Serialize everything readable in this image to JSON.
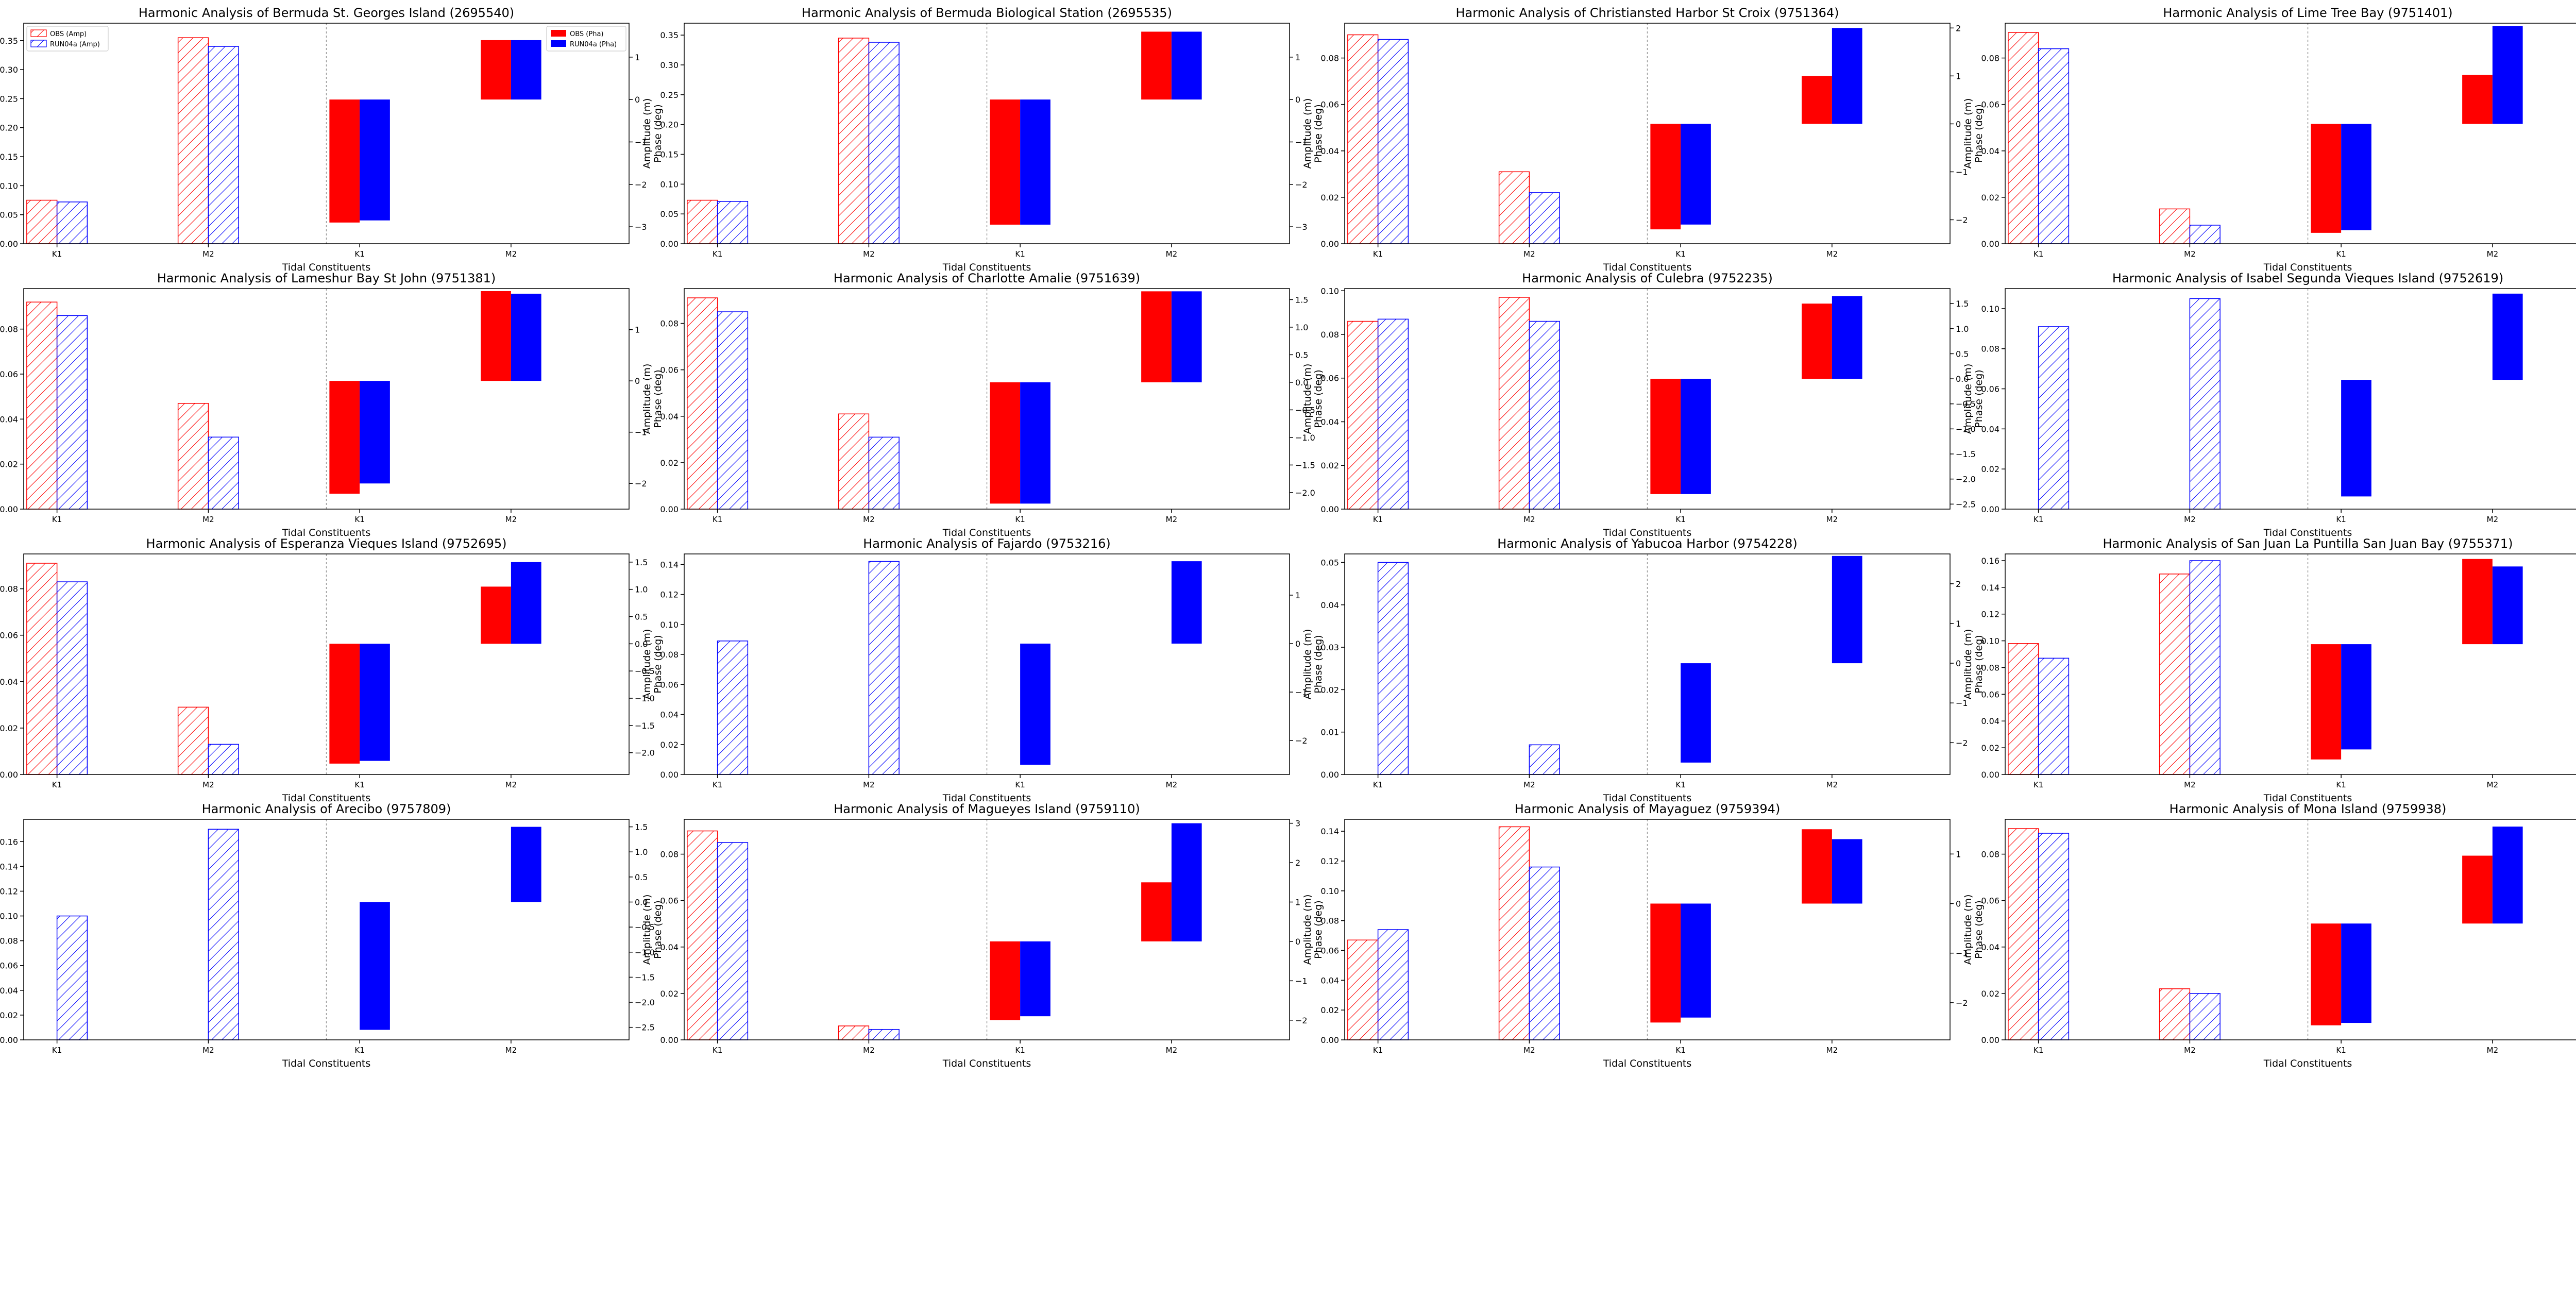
{
  "chart_data": [
    {
      "type": "bar",
      "title": "Harmonic Analysis of Bermuda St. Georges Island (2695540)",
      "xlabel": "Tidal Constituents",
      "ylabel": "Amplitude (m)",
      "y2label": "Phase (deg)",
      "categories": [
        "K1",
        "M2"
      ],
      "ylim": [
        0,
        0.38
      ],
      "yticks": [
        0,
        0.05,
        0.1,
        0.15,
        0.2,
        0.25,
        0.3,
        0.35
      ],
      "y2lim": [
        -3.4,
        1.8
      ],
      "y2ticks": [
        -3,
        -2,
        -1,
        0,
        1
      ],
      "amp_series": [
        {
          "name": "OBS (Amp)",
          "values": [
            0.075,
            0.355
          ]
        },
        {
          "name": "RUN04a (Amp)",
          "values": [
            0.072,
            0.34
          ]
        }
      ],
      "pha_series": [
        {
          "name": "OBS (Pha)",
          "values": [
            -2.9,
            1.4
          ]
        },
        {
          "name": "RUN04a (Pha)",
          "values": [
            -2.85,
            1.4
          ]
        }
      ],
      "legend": true
    },
    {
      "type": "bar",
      "title": "Harmonic Analysis of Bermuda Biological Station (2695535)",
      "xlabel": "Tidal Constituents",
      "ylabel": "Amplitude (m)",
      "y2label": "Phase (deg)",
      "categories": [
        "K1",
        "M2"
      ],
      "ylim": [
        0,
        0.37
      ],
      "yticks": [
        0,
        0.05,
        0.1,
        0.15,
        0.2,
        0.25,
        0.3,
        0.35
      ],
      "y2lim": [
        -3.4,
        1.8
      ],
      "y2ticks": [
        -3,
        -2,
        -1,
        0,
        1
      ],
      "amp_series": [
        {
          "name": "OBS (Amp)",
          "values": [
            0.073,
            0.345
          ]
        },
        {
          "name": "RUN04a (Amp)",
          "values": [
            0.071,
            0.338
          ]
        }
      ],
      "pha_series": [
        {
          "name": "OBS (Pha)",
          "values": [
            -2.95,
            1.6
          ]
        },
        {
          "name": "RUN04a (Pha)",
          "values": [
            -2.95,
            1.6
          ]
        }
      ]
    },
    {
      "type": "bar",
      "title": "Harmonic Analysis of Christiansted Harbor St Croix (9751364)",
      "xlabel": "Tidal Constituents",
      "ylabel": "Amplitude (m)",
      "y2label": "Phase (deg)",
      "categories": [
        "K1",
        "M2"
      ],
      "ylim": [
        0,
        0.095
      ],
      "yticks": [
        0,
        0.02,
        0.04,
        0.06,
        0.08
      ],
      "y2lim": [
        -2.5,
        2.1
      ],
      "y2ticks": [
        -2,
        -1,
        0,
        1,
        2
      ],
      "amp_series": [
        {
          "name": "OBS (Amp)",
          "values": [
            0.09,
            0.031
          ]
        },
        {
          "name": "RUN04a (Amp)",
          "values": [
            0.088,
            0.022
          ]
        }
      ],
      "pha_series": [
        {
          "name": "OBS (Pha)",
          "values": [
            -2.2,
            1.0
          ]
        },
        {
          "name": "RUN04a (Pha)",
          "values": [
            -2.1,
            2.0
          ]
        }
      ]
    },
    {
      "type": "bar",
      "title": "Harmonic Analysis of Lime Tree Bay (9751401)",
      "xlabel": "Tidal Constituents",
      "ylabel": "Amplitude (m)",
      "y2label": "Phase (deg)",
      "categories": [
        "K1",
        "M2"
      ],
      "ylim": [
        0,
        0.095
      ],
      "yticks": [
        0,
        0.02,
        0.04,
        0.06,
        0.08
      ],
      "y2lim": [
        -2.2,
        1.85
      ],
      "y2ticks": [
        -2.0,
        -1.5,
        -1.0,
        -0.5,
        0.0,
        0.5,
        1.0,
        1.5
      ],
      "amp_series": [
        {
          "name": "OBS (Amp)",
          "values": [
            0.091,
            0.015
          ]
        },
        {
          "name": "RUN04a (Amp)",
          "values": [
            0.084,
            0.008
          ]
        }
      ],
      "pha_series": [
        {
          "name": "OBS (Pha)",
          "values": [
            -2.0,
            0.9
          ]
        },
        {
          "name": "RUN04a (Pha)",
          "values": [
            -1.95,
            1.8
          ]
        }
      ]
    },
    {
      "type": "bar",
      "title": "Harmonic Analysis of Lameshur Bay St John (9751381)",
      "xlabel": "Tidal Constituents",
      "ylabel": "Amplitude (m)",
      "y2label": "Phase (deg)",
      "categories": [
        "K1",
        "M2"
      ],
      "ylim": [
        0,
        0.098
      ],
      "yticks": [
        0,
        0.02,
        0.04,
        0.06,
        0.08
      ],
      "y2lim": [
        -2.5,
        1.8
      ],
      "y2ticks": [
        -2,
        -1,
        0,
        1
      ],
      "amp_series": [
        {
          "name": "OBS (Amp)",
          "values": [
            0.092,
            0.047
          ]
        },
        {
          "name": "RUN04a (Amp)",
          "values": [
            0.086,
            0.032
          ]
        }
      ],
      "pha_series": [
        {
          "name": "OBS (Pha)",
          "values": [
            -2.2,
            1.75
          ]
        },
        {
          "name": "RUN04a (Pha)",
          "values": [
            -2.0,
            1.7
          ]
        }
      ]
    },
    {
      "type": "bar",
      "title": "Harmonic Analysis of Charlotte Amalie (9751639)",
      "xlabel": "Tidal Constituents",
      "ylabel": "Amplitude (m)",
      "y2label": "Phase (deg)",
      "categories": [
        "K1",
        "M2"
      ],
      "ylim": [
        0,
        0.095
      ],
      "yticks": [
        0,
        0.02,
        0.04,
        0.06,
        0.08
      ],
      "y2lim": [
        -2.3,
        1.7
      ],
      "y2ticks": [
        -2.0,
        -1.5,
        -1.0,
        -0.5,
        0.0,
        0.5,
        1.0,
        1.5
      ],
      "amp_series": [
        {
          "name": "OBS (Amp)",
          "values": [
            0.091,
            0.041
          ]
        },
        {
          "name": "RUN04a (Amp)",
          "values": [
            0.085,
            0.031
          ]
        }
      ],
      "pha_series": [
        {
          "name": "OBS (Pha)",
          "values": [
            -2.2,
            1.65
          ]
        },
        {
          "name": "RUN04a (Pha)",
          "values": [
            -2.2,
            1.65
          ]
        }
      ]
    },
    {
      "type": "bar",
      "title": "Harmonic Analysis of Culebra (9752235)",
      "xlabel": "Tidal Constituents",
      "ylabel": "Amplitude (m)",
      "y2label": "Phase (deg)",
      "categories": [
        "K1",
        "M2"
      ],
      "ylim": [
        0,
        0.101
      ],
      "yticks": [
        0,
        0.02,
        0.04,
        0.06,
        0.08,
        0.1
      ],
      "y2lim": [
        -2.6,
        1.8
      ],
      "y2ticks": [
        -2.5,
        -2.0,
        -1.5,
        -1.0,
        -0.5,
        0.0,
        0.5,
        1.0,
        1.5
      ],
      "amp_series": [
        {
          "name": "OBS (Amp)",
          "values": [
            0.086,
            0.097
          ]
        },
        {
          "name": "RUN04a (Amp)",
          "values": [
            0.087,
            0.086
          ]
        }
      ],
      "pha_series": [
        {
          "name": "OBS (Pha)",
          "values": [
            -2.3,
            1.5
          ]
        },
        {
          "name": "RUN04a (Pha)",
          "values": [
            -2.3,
            1.65
          ]
        }
      ]
    },
    {
      "type": "bar",
      "title": "Harmonic Analysis of Isabel Segunda Vieques Island (9752619)",
      "xlabel": "Tidal Constituents",
      "ylabel": "Amplitude (m)",
      "y2label": "Phase (deg)",
      "categories": [
        "K1",
        "M2"
      ],
      "ylim": [
        0,
        0.11
      ],
      "yticks": [
        0,
        0.02,
        0.04,
        0.06,
        0.08,
        0.1
      ],
      "y2lim": [
        -2.55,
        1.8
      ],
      "y2ticks": [
        -2,
        -1,
        0,
        1
      ],
      "amp_series": [
        {
          "name": "OBS (Amp)",
          "values": [
            null,
            null
          ]
        },
        {
          "name": "RUN04a (Amp)",
          "values": [
            0.091,
            0.105
          ]
        }
      ],
      "pha_series": [
        {
          "name": "OBS (Pha)",
          "values": [
            null,
            null
          ]
        },
        {
          "name": "RUN04a (Pha)",
          "values": [
            -2.3,
            1.7
          ]
        }
      ]
    },
    {
      "type": "bar",
      "title": "Harmonic Analysis of Esperanza Vieques Island (9752695)",
      "xlabel": "Tidal Constituents",
      "ylabel": "Amplitude (m)",
      "y2label": "Phase (deg)",
      "categories": [
        "K1",
        "M2"
      ],
      "ylim": [
        0,
        0.095
      ],
      "yticks": [
        0,
        0.02,
        0.04,
        0.06,
        0.08
      ],
      "y2lim": [
        -2.4,
        1.65
      ],
      "y2ticks": [
        -2.0,
        -1.5,
        -1.0,
        -0.5,
        0.0,
        0.5,
        1.0,
        1.5
      ],
      "amp_series": [
        {
          "name": "OBS (Amp)",
          "values": [
            0.091,
            0.029
          ]
        },
        {
          "name": "RUN04a (Amp)",
          "values": [
            0.083,
            0.013
          ]
        }
      ],
      "pha_series": [
        {
          "name": "OBS (Pha)",
          "values": [
            -2.2,
            1.05
          ]
        },
        {
          "name": "RUN04a (Pha)",
          "values": [
            -2.15,
            1.5
          ]
        }
      ]
    },
    {
      "type": "bar",
      "title": "Harmonic Analysis of Fajardo (9753216)",
      "xlabel": "Tidal Constituents",
      "ylabel": "Amplitude (m)",
      "y2label": "Phase (deg)",
      "categories": [
        "K1",
        "M2"
      ],
      "ylim": [
        0,
        0.147
      ],
      "yticks": [
        0,
        0.02,
        0.04,
        0.06,
        0.08,
        0.1,
        0.12,
        0.14
      ],
      "y2lim": [
        -2.7,
        1.85
      ],
      "y2ticks": [
        -2,
        -1,
        0,
        1
      ],
      "amp_series": [
        {
          "name": "OBS (Amp)",
          "values": [
            null,
            null
          ]
        },
        {
          "name": "RUN04a (Amp)",
          "values": [
            0.089,
            0.142
          ]
        }
      ],
      "pha_series": [
        {
          "name": "OBS (Pha)",
          "values": [
            null,
            null
          ]
        },
        {
          "name": "RUN04a (Pha)",
          "values": [
            -2.5,
            1.7
          ]
        }
      ]
    },
    {
      "type": "bar",
      "title": "Harmonic Analysis of Yabucoa Harbor (9754228)",
      "xlabel": "Tidal Constituents",
      "ylabel": "Amplitude (m)",
      "y2label": "Phase (deg)",
      "categories": [
        "K1",
        "M2"
      ],
      "ylim": [
        0,
        0.052
      ],
      "yticks": [
        0,
        0.01,
        0.02,
        0.03,
        0.04,
        0.05
      ],
      "y2lim": [
        -2.8,
        2.75
      ],
      "y2ticks": [
        -2,
        -1,
        0,
        1,
        2
      ],
      "amp_series": [
        {
          "name": "OBS (Amp)",
          "values": [
            null,
            null
          ]
        },
        {
          "name": "RUN04a (Amp)",
          "values": [
            0.05,
            0.007
          ]
        }
      ],
      "pha_series": [
        {
          "name": "OBS (Pha)",
          "values": [
            null,
            null
          ]
        },
        {
          "name": "RUN04a (Pha)",
          "values": [
            -2.5,
            2.7
          ]
        }
      ]
    },
    {
      "type": "bar",
      "title": "Harmonic Analysis of San Juan La Puntilla San Juan Bay (9755371)",
      "xlabel": "Tidal Constituents",
      "ylabel": "Amplitude (m)",
      "y2label": "Phase (deg)",
      "categories": [
        "K1",
        "M2"
      ],
      "ylim": [
        0,
        0.165
      ],
      "yticks": [
        0,
        0.02,
        0.04,
        0.06,
        0.08,
        0.1,
        0.12,
        0.14,
        0.16
      ],
      "y2lim": [
        -2.6,
        1.8
      ],
      "y2ticks": [
        -2,
        -1,
        0,
        1
      ],
      "amp_series": [
        {
          "name": "OBS (Amp)",
          "values": [
            0.098,
            0.15
          ]
        },
        {
          "name": "RUN04a (Amp)",
          "values": [
            0.087,
            0.16
          ]
        }
      ],
      "pha_series": [
        {
          "name": "OBS (Pha)",
          "values": [
            -2.3,
            1.7
          ]
        },
        {
          "name": "RUN04a (Pha)",
          "values": [
            -2.1,
            1.55
          ]
        }
      ]
    },
    {
      "type": "bar",
      "title": "Harmonic Analysis of Arecibo (9757809)",
      "xlabel": "Tidal Constituents",
      "ylabel": "Amplitude (m)",
      "y2label": "Phase (deg)",
      "categories": [
        "K1",
        "M2"
      ],
      "ylim": [
        0,
        0.178
      ],
      "yticks": [
        0,
        0.02,
        0.04,
        0.06,
        0.08,
        0.1,
        0.12,
        0.14,
        0.16
      ],
      "y2lim": [
        -2.75,
        1.65
      ],
      "y2ticks": [
        -2.5,
        -2.0,
        -1.5,
        -1.0,
        -0.5,
        0.0,
        0.5,
        1.0,
        1.5
      ],
      "amp_series": [
        {
          "name": "OBS (Amp)",
          "values": [
            null,
            null
          ]
        },
        {
          "name": "RUN04a (Amp)",
          "values": [
            0.1,
            0.17
          ]
        }
      ],
      "pha_series": [
        {
          "name": "OBS (Pha)",
          "values": [
            null,
            null
          ]
        },
        {
          "name": "RUN04a (Pha)",
          "values": [
            -2.55,
            1.5
          ]
        }
      ]
    },
    {
      "type": "bar",
      "title": "Harmonic Analysis of Magueyes Island (9759110)",
      "xlabel": "Tidal Constituents",
      "ylabel": "Amplitude (m)",
      "y2label": "Phase (deg)",
      "categories": [
        "K1",
        "M2"
      ],
      "ylim": [
        0,
        0.095
      ],
      "yticks": [
        0,
        0.02,
        0.04,
        0.06,
        0.08
      ],
      "y2lim": [
        -2.5,
        3.1
      ],
      "y2ticks": [
        -2,
        -1,
        0,
        1,
        2,
        3
      ],
      "amp_series": [
        {
          "name": "OBS (Amp)",
          "values": [
            0.09,
            0.006
          ]
        },
        {
          "name": "RUN04a (Amp)",
          "values": [
            0.085,
            0.0045
          ]
        }
      ],
      "pha_series": [
        {
          "name": "OBS (Pha)",
          "values": [
            -2.0,
            1.5
          ]
        },
        {
          "name": "RUN04a (Pha)",
          "values": [
            -1.9,
            3.0
          ]
        }
      ]
    },
    {
      "type": "bar",
      "title": "Harmonic Analysis of Mayaguez (9759394)",
      "xlabel": "Tidal Constituents",
      "ylabel": "Amplitude (m)",
      "y2label": "Phase (deg)",
      "categories": [
        "K1",
        "M2"
      ],
      "ylim": [
        0,
        0.148
      ],
      "yticks": [
        0,
        0.02,
        0.04,
        0.06,
        0.08,
        0.1,
        0.12,
        0.14
      ],
      "y2lim": [
        -2.75,
        1.7
      ],
      "y2ticks": [
        -2,
        -1,
        0,
        1
      ],
      "amp_series": [
        {
          "name": "OBS (Amp)",
          "values": [
            0.067,
            0.143
          ]
        },
        {
          "name": "RUN04a (Amp)",
          "values": [
            0.074,
            0.116
          ]
        }
      ],
      "pha_series": [
        {
          "name": "OBS (Pha)",
          "values": [
            -2.4,
            1.5
          ]
        },
        {
          "name": "RUN04a (Pha)",
          "values": [
            -2.3,
            1.3
          ]
        }
      ]
    },
    {
      "type": "bar",
      "title": "Harmonic Analysis of Mona Island (9759938)",
      "xlabel": "Tidal Constituents",
      "ylabel": "Amplitude (m)",
      "y2label": "Phase (deg)",
      "categories": [
        "K1",
        "M2"
      ],
      "ylim": [
        0,
        0.095
      ],
      "yticks": [
        0,
        0.02,
        0.04,
        0.06,
        0.08
      ],
      "y2lim": [
        -2.4,
        2.15
      ],
      "y2ticks": [
        -2,
        -1,
        0,
        1,
        2
      ],
      "amp_series": [
        {
          "name": "OBS (Amp)",
          "values": [
            0.091,
            0.022
          ]
        },
        {
          "name": "RUN04a (Amp)",
          "values": [
            0.089,
            0.02
          ]
        }
      ],
      "pha_series": [
        {
          "name": "OBS (Pha)",
          "values": [
            -2.1,
            1.4
          ]
        },
        {
          "name": "RUN04a (Pha)",
          "values": [
            -2.05,
            2.0
          ]
        }
      ]
    }
  ],
  "colors": {
    "obs": "#ff0000",
    "run": "#0000ff",
    "axis": "#000000",
    "divider": "#999999"
  }
}
